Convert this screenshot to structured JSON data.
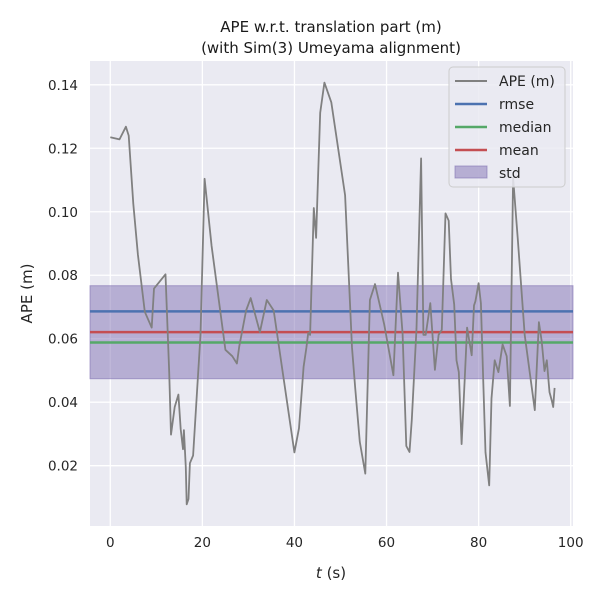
{
  "chart_data": {
    "type": "line",
    "title_lines": [
      "APE w.r.t. translation part (m)",
      "(with Sim(3) Umeyama alignment)"
    ],
    "xlabel_var": "t",
    "xlabel_unit": " (s)",
    "ylabel": "APE (m)",
    "xlim": [
      -4.4,
      100.5
    ],
    "ylim": [
      0.001,
      0.1475
    ],
    "xticks": [
      0,
      20,
      40,
      60,
      80,
      100
    ],
    "xtick_labels": [
      "0",
      "20",
      "40",
      "60",
      "80",
      "100"
    ],
    "yticks": [
      0.02,
      0.04,
      0.06,
      0.08,
      0.1,
      0.12,
      0.14
    ],
    "ytick_labels": [
      "0.02",
      "0.04",
      "0.06",
      "0.08",
      "0.10",
      "0.12",
      "0.14"
    ],
    "grid": true,
    "legend_position": "top-right",
    "legend": [
      "APE (m)",
      "rmse",
      "median",
      "mean",
      "std"
    ],
    "stats": {
      "rmse": 0.0686,
      "median": 0.0588,
      "mean": 0.0621,
      "std_low": 0.0474,
      "std_high": 0.0767
    },
    "colors": {
      "ape": "#808080",
      "rmse": "#4c72b0",
      "median": "#55a868",
      "mean": "#c44e52",
      "std_fill": "#8172b3",
      "background": "#eaeaf2",
      "grid": "#ffffff"
    },
    "series": [
      {
        "name": "APE (m)",
        "x": [
          0,
          2,
          3.4,
          4,
          5,
          6,
          7.5,
          9,
          9.5,
          12,
          12.8,
          13.2,
          14,
          14.8,
          15.3,
          15.8,
          16,
          16.4,
          16.6,
          17,
          17.3,
          18,
          19.6,
          20.5,
          22,
          25,
          26.5,
          27.5,
          28,
          29.5,
          30.5,
          32.5,
          34,
          35.5,
          40,
          41,
          42,
          42.6,
          43,
          43.4,
          44.2,
          44.7,
          45.1,
          45.6,
          46.5,
          48,
          51,
          52.5,
          53.2,
          54.2,
          55.4,
          56.4,
          57.5,
          59.5,
          61.5,
          62.5,
          63.5,
          64.3,
          65,
          65.5,
          66.5,
          67.5,
          68,
          68.5,
          69.5,
          70.5,
          71.3,
          72,
          72.8,
          73.5,
          74,
          74.7,
          75.2,
          75.7,
          76.3,
          77,
          77.5,
          78.5,
          79,
          79.3,
          80,
          80.5,
          81,
          81.5,
          82.3,
          82.8,
          83.5,
          84.3,
          85.2,
          86.1,
          86.8,
          87.5,
          88.5,
          90,
          92.2,
          92.6,
          93.1,
          93.7,
          94.3,
          94.8,
          95.4,
          95.9,
          96.2,
          96.5
        ],
        "y": [
          0.1235,
          0.1228,
          0.1268,
          0.124,
          0.1025,
          0.0865,
          0.0685,
          0.0635,
          0.0758,
          0.0803,
          0.0495,
          0.0298,
          0.0385,
          0.0424,
          0.0315,
          0.0252,
          0.0312,
          0.0195,
          0.0078,
          0.0095,
          0.0208,
          0.0232,
          0.0612,
          0.1104,
          0.0892,
          0.0565,
          0.0545,
          0.0522,
          0.0575,
          0.0689,
          0.0728,
          0.0621,
          0.0722,
          0.0689,
          0.0242,
          0.0318,
          0.0512,
          0.0572,
          0.0618,
          0.0612,
          0.1012,
          0.0918,
          0.1095,
          0.1312,
          0.1407,
          0.1345,
          0.1052,
          0.0572,
          0.0445,
          0.0275,
          0.0175,
          0.0722,
          0.0772,
          0.0645,
          0.0485,
          0.0808,
          0.0615,
          0.0262,
          0.0243,
          0.0345,
          0.0632,
          0.1168,
          0.0612,
          0.0612,
          0.0712,
          0.0502,
          0.0612,
          0.0628,
          0.0995,
          0.0972,
          0.0788,
          0.0708,
          0.0532,
          0.0495,
          0.0268,
          0.0478,
          0.0635,
          0.0548,
          0.0705,
          0.0718,
          0.0775,
          0.0712,
          0.0472,
          0.0242,
          0.0138,
          0.0412,
          0.0532,
          0.0495,
          0.0582,
          0.0545,
          0.0388,
          0.1107,
          0.0918,
          0.0612,
          0.0375,
          0.0498,
          0.0652,
          0.0592,
          0.0498,
          0.0532,
          0.0432,
          0.0405,
          0.0385,
          0.0445
        ]
      }
    ]
  }
}
